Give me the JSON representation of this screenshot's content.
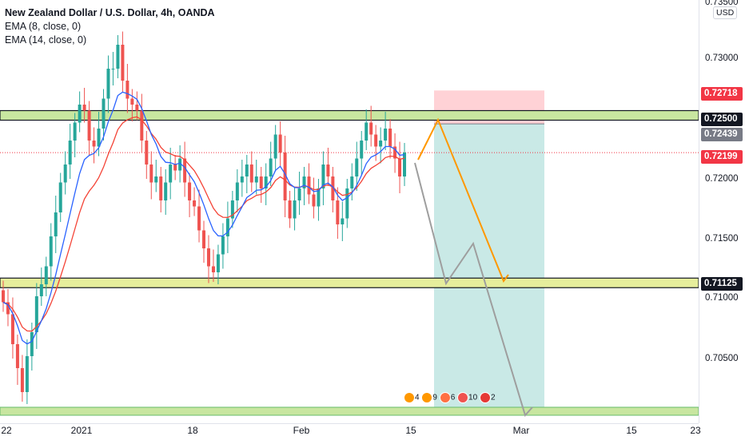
{
  "symbol": {
    "title": "New Zealand Dollar / U.S. Dollar, 4h, OANDA",
    "indicators": [
      "EMA (8, close, 0)",
      "EMA (14, close, 0)"
    ]
  },
  "price_axis": {
    "currency": "USD",
    "ticks": [
      "0.73500",
      "0.73000",
      "0.72000",
      "0.71500",
      "0.71000",
      "0.70500"
    ],
    "badges": [
      {
        "label": "0.72718",
        "color": "#f23645",
        "name": "stop-loss-price-badge"
      },
      {
        "label": "0.72500",
        "color": "#131722",
        "name": "resistance-price-badge"
      },
      {
        "label": "0.72439",
        "color": "#787b86",
        "name": "entry-price-badge"
      },
      {
        "label": "0.72199",
        "color": "#f23645",
        "name": "current-price-badge"
      },
      {
        "label": "0.71125",
        "color": "#131722",
        "name": "support-price-badge"
      }
    ]
  },
  "time_axis": {
    "labels": [
      "22",
      "2021",
      "18",
      "Feb",
      "15",
      "Mar",
      "15",
      "23"
    ]
  },
  "events": {
    "labels": [
      "4",
      "9",
      "6",
      "10",
      "2"
    ]
  },
  "colors": {
    "bull": "#26a69a",
    "bear": "#ef5350",
    "ema_fast": "#2962ff",
    "ema_slow": "#f44336",
    "zone_fill": "#c8e6a0",
    "projection_orange": "#ff9800",
    "projection_gray": "#9e9e9e",
    "target_fill": "#b2dfdb",
    "stop_fill": "#ffcdd2"
  },
  "chart_data": {
    "type": "candlestick",
    "title": "New Zealand Dollar / U.S. Dollar, 4h, OANDA",
    "ylim": [
      0.6995,
      0.7365
    ],
    "levels": {
      "resistance": 0.725,
      "support": 0.71125,
      "current": 0.72199,
      "entry": 0.72439,
      "stop": 0.72718
    },
    "closes": [
      0.7095,
      0.7085,
      0.706,
      0.704,
      0.702,
      0.705,
      0.707,
      0.71,
      0.711,
      0.7125,
      0.715,
      0.717,
      0.7195,
      0.721,
      0.723,
      0.7245,
      0.726,
      0.7255,
      0.723,
      0.7225,
      0.724,
      0.7265,
      0.729,
      0.729,
      0.731,
      0.728,
      0.7265,
      0.726,
      0.7255,
      0.723,
      0.721,
      0.7195,
      0.72,
      0.718,
      0.7195,
      0.721,
      0.7205,
      0.7215,
      0.7195,
      0.718,
      0.7175,
      0.7155,
      0.714,
      0.7125,
      0.712,
      0.7135,
      0.715,
      0.7165,
      0.718,
      0.7195,
      0.72,
      0.721,
      0.7195,
      0.72,
      0.719,
      0.72,
      0.7215,
      0.7235,
      0.722,
      0.718,
      0.7165,
      0.718,
      0.719,
      0.72,
      0.7185,
      0.7175,
      0.719,
      0.721,
      0.72,
      0.718,
      0.716,
      0.7165,
      0.719,
      0.72,
      0.7215,
      0.723,
      0.7245,
      0.7235,
      0.7225,
      0.723,
      0.724,
      0.7225,
      0.7215,
      0.72,
      0.722
    ],
    "ema_series": [
      "EMA (8, close, 0)",
      "EMA (14, close, 0)"
    ]
  }
}
